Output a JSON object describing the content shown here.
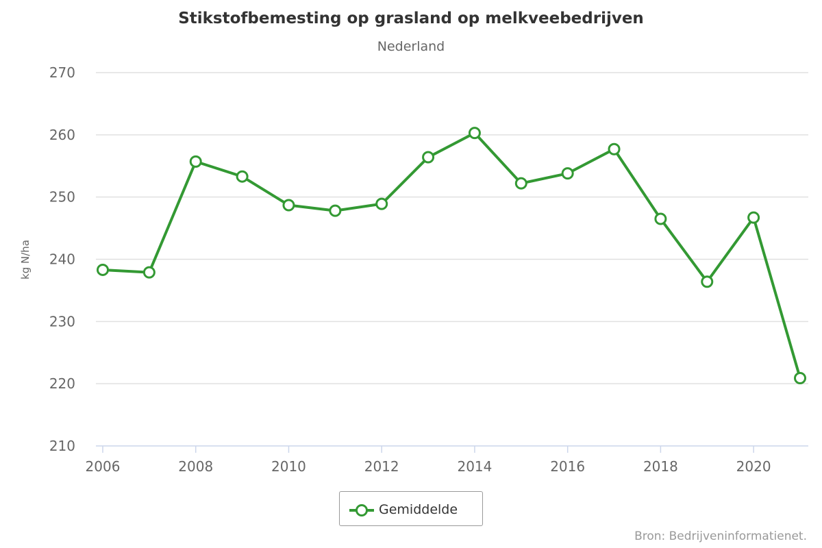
{
  "chart_data": {
    "type": "line",
    "title": "Stikstofbemesting op grasland op melkveebedrijven",
    "subtitle": "Nederland",
    "xlabel": "",
    "ylabel": "kg N/ha",
    "x": [
      2006,
      2007,
      2008,
      2009,
      2010,
      2011,
      2012,
      2013,
      2014,
      2015,
      2016,
      2017,
      2018,
      2019,
      2020,
      2021
    ],
    "xlim": [
      2006,
      2021
    ],
    "xticks": [
      "2006",
      "2008",
      "2010",
      "2012",
      "2014",
      "2016",
      "2018",
      "2020"
    ],
    "ylim": [
      210,
      270
    ],
    "yticks": [
      "210",
      "220",
      "230",
      "240",
      "250",
      "260",
      "270"
    ],
    "series": [
      {
        "name": "Gemiddelde",
        "color": "#339933",
        "values": [
          238.3,
          237.9,
          255.7,
          253.3,
          248.7,
          247.8,
          248.9,
          256.4,
          260.3,
          252.2,
          253.8,
          257.7,
          246.5,
          236.4,
          246.7,
          220.9
        ]
      }
    ],
    "grid": true,
    "legend_position": "bottom-center"
  },
  "source": "Bron: Bedrijveninformatienet."
}
